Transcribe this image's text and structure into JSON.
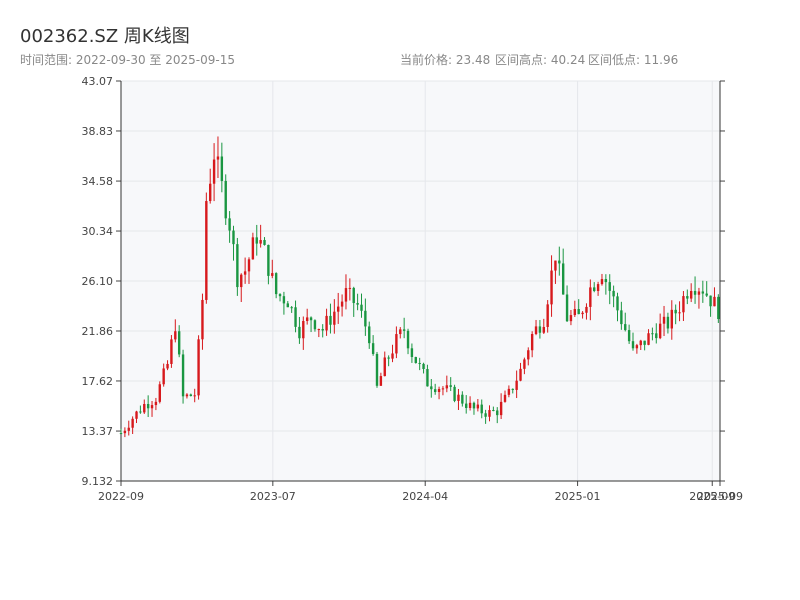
{
  "header": {
    "title": "002362.SZ 周K线图",
    "range_text": "时间范围: 2022-09-30 至 2025-09-15",
    "price_text": "当前价格: 23.48",
    "high_text": "区间高点: 40.24",
    "low_text": "区间低点: 11.96"
  },
  "colors": {
    "up": "#d7191c",
    "down": "#1a9641",
    "plot_bg": "#f7f8fa",
    "grid": "#e5e7eb"
  },
  "chart_data": {
    "type": "candlestick",
    "title": "002362.SZ 周K线图",
    "xlabel": "",
    "ylabel": "",
    "ylim": [
      9.132,
      43.07
    ],
    "y_ticks": [
      "43.07",
      "38.83",
      "34.58",
      "30.34",
      "26.10",
      "21.86",
      "17.62",
      "13.37",
      "9.132"
    ],
    "x_ticks": [
      {
        "label": "2022-09",
        "date": "2022-09-30"
      },
      {
        "label": "2023-07",
        "date": "2023-07-01"
      },
      {
        "label": "2024-04",
        "date": "2024-04-01"
      },
      {
        "label": "2025-01",
        "date": "2025-01-01"
      },
      {
        "label": "2025-09",
        "date": "2025-09-01"
      },
      {
        "label": "2025-09",
        "date": "2025-09-15"
      }
    ],
    "x_range": [
      "2022-09-30",
      "2025-09-15"
    ],
    "grid": true,
    "close_anchors": [
      [
        "2022-09-30",
        13.2
      ],
      [
        "2022-10-21",
        14.5
      ],
      [
        "2022-11-11",
        15.6
      ],
      [
        "2022-12-02",
        16.2
      ],
      [
        "2022-12-23",
        19.0
      ],
      [
        "2023-01-06",
        22.5
      ],
      [
        "2023-01-20",
        16.2
      ],
      [
        "2023-02-10",
        16.5
      ],
      [
        "2023-02-24",
        24.5
      ],
      [
        "2023-03-03",
        33.0
      ],
      [
        "2023-03-17",
        37.0
      ],
      [
        "2023-03-31",
        34.0
      ],
      [
        "2023-04-14",
        31.0
      ],
      [
        "2023-04-28",
        26.5
      ],
      [
        "2023-05-12",
        27.0
      ],
      [
        "2023-06-02",
        30.0
      ],
      [
        "2023-06-16",
        28.5
      ],
      [
        "2023-07-07",
        25.0
      ],
      [
        "2023-07-28",
        24.5
      ],
      [
        "2023-08-18",
        22.0
      ],
      [
        "2023-09-08",
        23.0
      ],
      [
        "2023-09-29",
        22.0
      ],
      [
        "2023-10-20",
        23.5
      ],
      [
        "2023-11-10",
        25.0
      ],
      [
        "2023-12-01",
        24.0
      ],
      [
        "2023-12-22",
        21.5
      ],
      [
        "2024-01-05",
        17.0
      ],
      [
        "2024-01-19",
        19.0
      ],
      [
        "2024-02-09",
        21.0
      ],
      [
        "2024-02-23",
        22.0
      ],
      [
        "2024-03-08",
        20.0
      ],
      [
        "2024-04-05",
        17.5
      ],
      [
        "2024-05-03",
        17.0
      ],
      [
        "2024-05-31",
        16.2
      ],
      [
        "2024-06-28",
        15.2
      ],
      [
        "2024-07-26",
        14.9
      ],
      [
        "2024-08-09",
        15.1
      ],
      [
        "2024-08-30",
        16.5
      ],
      [
        "2024-09-20",
        18.5
      ],
      [
        "2024-10-11",
        21.5
      ],
      [
        "2024-11-01",
        23.0
      ],
      [
        "2024-11-22",
        28.5
      ],
      [
        "2024-12-13",
        23.0
      ],
      [
        "2025-01-03",
        23.0
      ],
      [
        "2025-01-24",
        25.5
      ],
      [
        "2025-02-14",
        27.0
      ],
      [
        "2025-03-07",
        24.5
      ],
      [
        "2025-03-28",
        22.0
      ],
      [
        "2025-04-11",
        20.0
      ],
      [
        "2025-05-02",
        21.0
      ],
      [
        "2025-05-23",
        22.0
      ],
      [
        "2025-06-13",
        22.5
      ],
      [
        "2025-07-04",
        24.0
      ],
      [
        "2025-07-25",
        26.0
      ],
      [
        "2025-08-15",
        25.5
      ],
      [
        "2025-09-15",
        23.48
      ]
    ]
  }
}
